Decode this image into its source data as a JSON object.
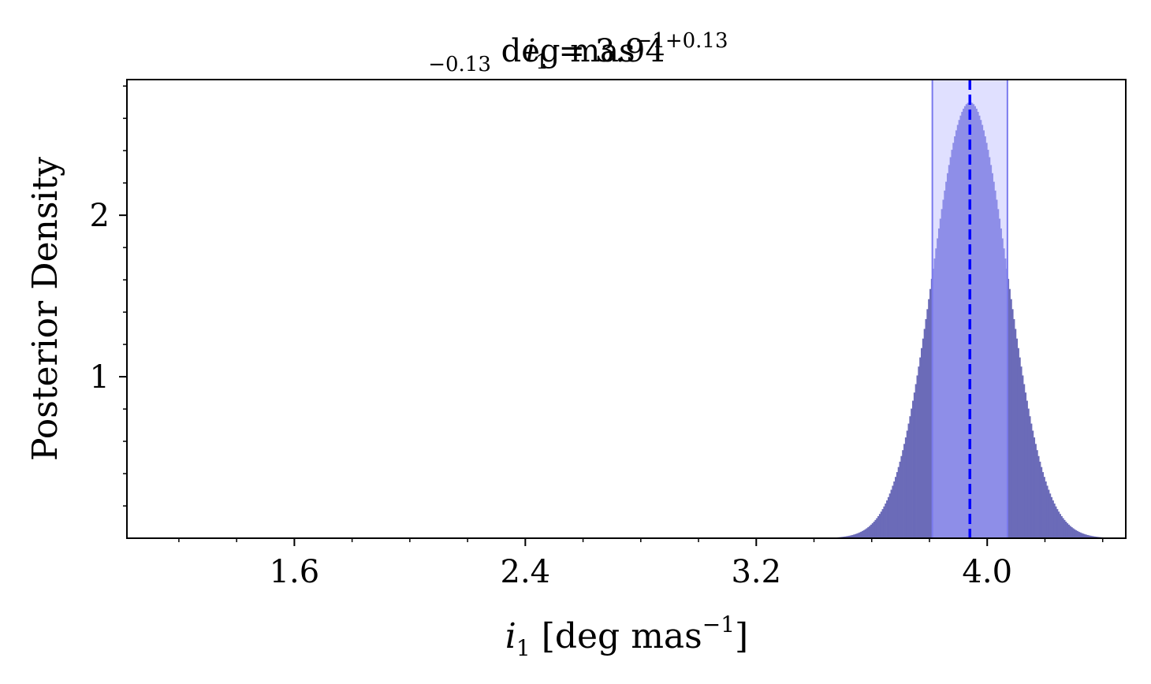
{
  "chart_data": {
    "type": "bar",
    "subtype": "histogram",
    "title": {
      "symbol": "i",
      "subscript": "1",
      "equals": " = ",
      "value": "3.94",
      "upper_err": "+0.13",
      "lower_err": "−0.13",
      "unit_main": " deg mas",
      "unit_exp": "−1"
    },
    "xlabel": {
      "symbol": "i",
      "subscript": "1",
      "unit_open": " [deg mas",
      "unit_exp": "−1",
      "unit_close": "]"
    },
    "ylabel": "Posterior Density",
    "xlim": [
      1.02,
      4.48
    ],
    "ylim": [
      0,
      2.84
    ],
    "xticks": [
      1.6,
      2.4,
      3.2,
      4.0
    ],
    "xtick_labels": [
      "1.6",
      "2.4",
      "3.2",
      "4.0"
    ],
    "yticks": [
      1,
      2
    ],
    "ytick_labels": [
      "1",
      "2"
    ],
    "distribution": {
      "median": 3.94,
      "sigma_low": 0.13,
      "sigma_high": 0.13,
      "peak_density": 2.7,
      "support": [
        3.3,
        4.43
      ],
      "bin_width": 0.005
    },
    "credible_interval": [
      3.81,
      4.07
    ],
    "colors": {
      "histogram": "#6b6bb8",
      "interval_fill": "#c6c6ff",
      "interval_edge": "#7a7aee",
      "median_line": "#0000ff",
      "histogram_in_band": "#4b4bcc"
    }
  }
}
